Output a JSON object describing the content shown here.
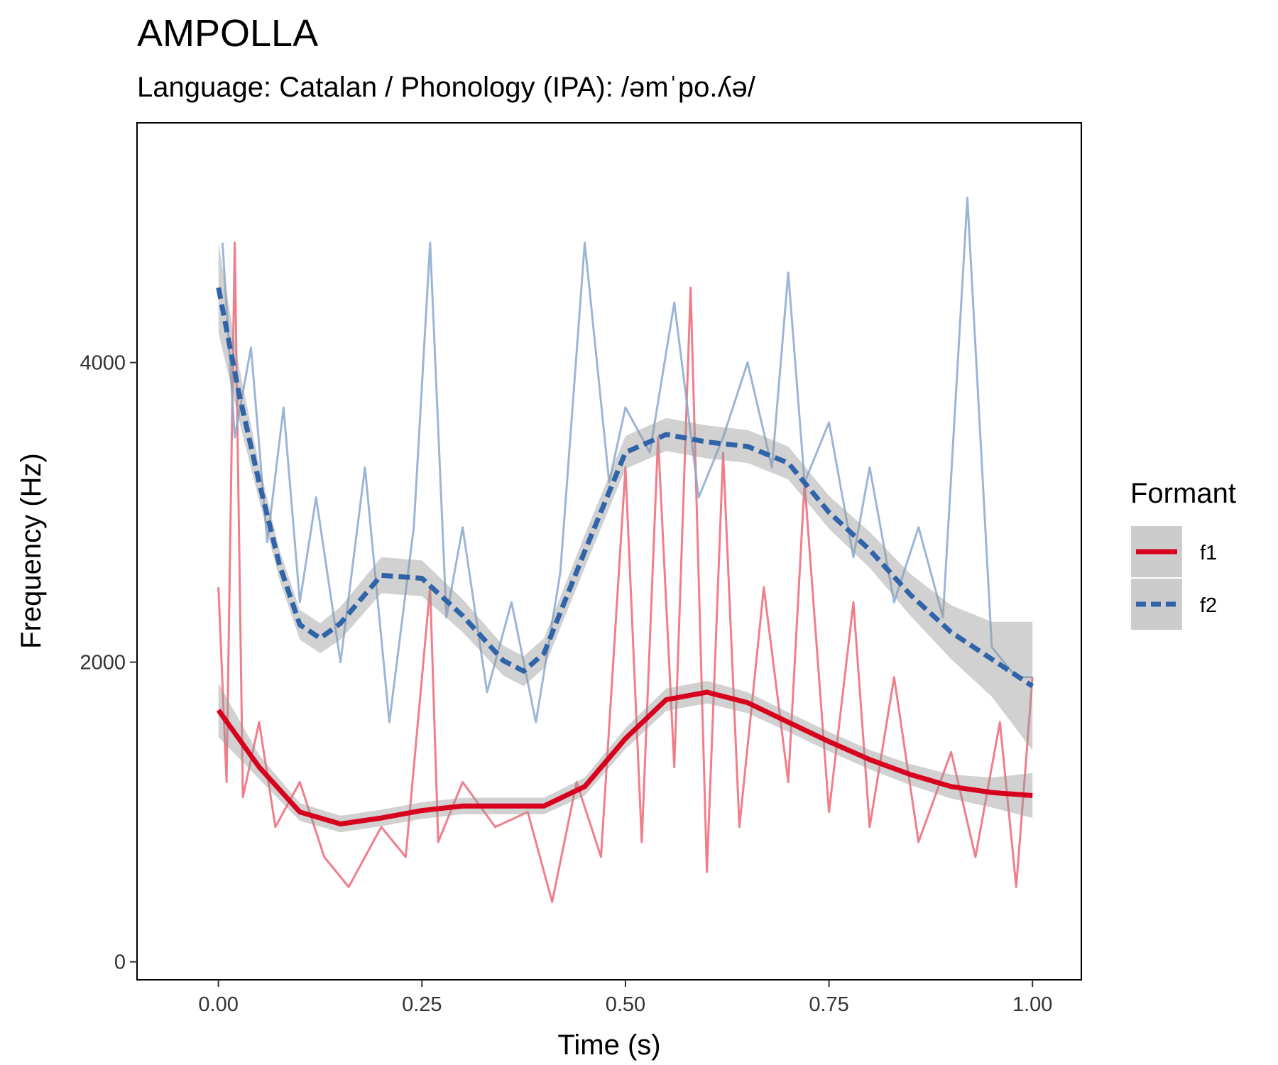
{
  "chart_data": {
    "type": "line",
    "title": "AMPOLLA",
    "subtitle": "Language: Catalan / Phonology (IPA): /əmˈpo.ʎə/",
    "xlabel": "Time (s)",
    "ylabel": "Frequency (Hz)",
    "xlim": [
      -0.1,
      1.06
    ],
    "ylim": [
      -120,
      5600
    ],
    "x_ticks": [
      0,
      0.25,
      0.5,
      0.75,
      1.0
    ],
    "x_tick_labels": [
      "0.00",
      "0.25",
      "0.50",
      "0.75",
      "1.00"
    ],
    "y_ticks": [
      0,
      2000,
      4000
    ],
    "y_tick_labels": [
      "0",
      "2000",
      "4000"
    ],
    "grid": false,
    "legend": {
      "title": "Formant",
      "position": "right"
    },
    "series": [
      {
        "name": "f1",
        "color": "#D7001D",
        "raw_color": "#EE6677",
        "linestyle": "solid",
        "smooth": {
          "x": [
            0,
            0.05,
            0.1,
            0.15,
            0.2,
            0.25,
            0.3,
            0.35,
            0.4,
            0.45,
            0.5,
            0.55,
            0.6,
            0.65,
            0.7,
            0.75,
            0.8,
            0.85,
            0.9,
            0.95,
            1.0
          ],
          "y": [
            1680,
            1300,
            1000,
            920,
            960,
            1010,
            1040,
            1040,
            1040,
            1170,
            1490,
            1750,
            1800,
            1730,
            1600,
            1470,
            1350,
            1250,
            1170,
            1130,
            1110
          ],
          "se": [
            180,
            80,
            60,
            55,
            55,
            55,
            55,
            55,
            55,
            60,
            70,
            75,
            75,
            70,
            65,
            65,
            65,
            70,
            80,
            100,
            150
          ]
        },
        "raw": {
          "x": [
            0,
            0.01,
            0.02,
            0.03,
            0.05,
            0.07,
            0.1,
            0.13,
            0.16,
            0.2,
            0.23,
            0.26,
            0.27,
            0.3,
            0.34,
            0.38,
            0.41,
            0.44,
            0.47,
            0.5,
            0.52,
            0.54,
            0.56,
            0.58,
            0.6,
            0.62,
            0.64,
            0.67,
            0.7,
            0.72,
            0.75,
            0.78,
            0.8,
            0.83,
            0.86,
            0.9,
            0.93,
            0.96,
            0.98,
            1.0
          ],
          "y": [
            2500,
            1200,
            4800,
            1100,
            1600,
            900,
            1200,
            700,
            500,
            900,
            700,
            2500,
            800,
            1200,
            900,
            1000,
            400,
            1200,
            700,
            3300,
            800,
            3500,
            1300,
            4500,
            600,
            3400,
            900,
            2500,
            1200,
            3200,
            1000,
            2400,
            900,
            1900,
            800,
            1400,
            700,
            1600,
            500,
            1900
          ]
        }
      },
      {
        "name": "f2",
        "color": "#2F64A9",
        "raw_color": "#88A9D0",
        "linestyle": "dashed",
        "smooth": {
          "x": [
            0,
            0.025,
            0.05,
            0.075,
            0.1,
            0.125,
            0.15,
            0.2,
            0.25,
            0.3,
            0.35,
            0.375,
            0.4,
            0.45,
            0.5,
            0.55,
            0.6,
            0.65,
            0.7,
            0.75,
            0.8,
            0.85,
            0.9,
            0.95,
            1.0
          ],
          "y": [
            4500,
            3800,
            3200,
            2650,
            2250,
            2160,
            2260,
            2580,
            2560,
            2310,
            2010,
            1940,
            2060,
            2740,
            3400,
            3520,
            3470,
            3440,
            3330,
            3000,
            2750,
            2450,
            2200,
            2020,
            1840
          ],
          "se": [
            300,
            180,
            120,
            100,
            100,
            100,
            110,
            120,
            120,
            110,
            100,
            100,
            100,
            110,
            110,
            110,
            110,
            110,
            110,
            110,
            120,
            140,
            180,
            250,
            430
          ]
        },
        "raw": {
          "x": [
            0.005,
            0.02,
            0.04,
            0.06,
            0.08,
            0.1,
            0.12,
            0.15,
            0.18,
            0.21,
            0.24,
            0.26,
            0.28,
            0.3,
            0.33,
            0.36,
            0.39,
            0.42,
            0.45,
            0.48,
            0.5,
            0.53,
            0.56,
            0.59,
            0.62,
            0.65,
            0.68,
            0.7,
            0.72,
            0.75,
            0.78,
            0.8,
            0.83,
            0.86,
            0.89,
            0.92,
            0.95,
            0.98,
            1.0
          ],
          "y": [
            4800,
            3500,
            4100,
            2800,
            3700,
            2400,
            3100,
            2000,
            3300,
            1600,
            2900,
            4800,
            2300,
            2900,
            1800,
            2400,
            1600,
            2600,
            4800,
            3200,
            3700,
            3400,
            4400,
            3100,
            3500,
            4000,
            3300,
            4600,
            3200,
            3600,
            2700,
            3300,
            2400,
            2900,
            2300,
            5100,
            2100,
            1900,
            1900
          ]
        }
      }
    ]
  }
}
